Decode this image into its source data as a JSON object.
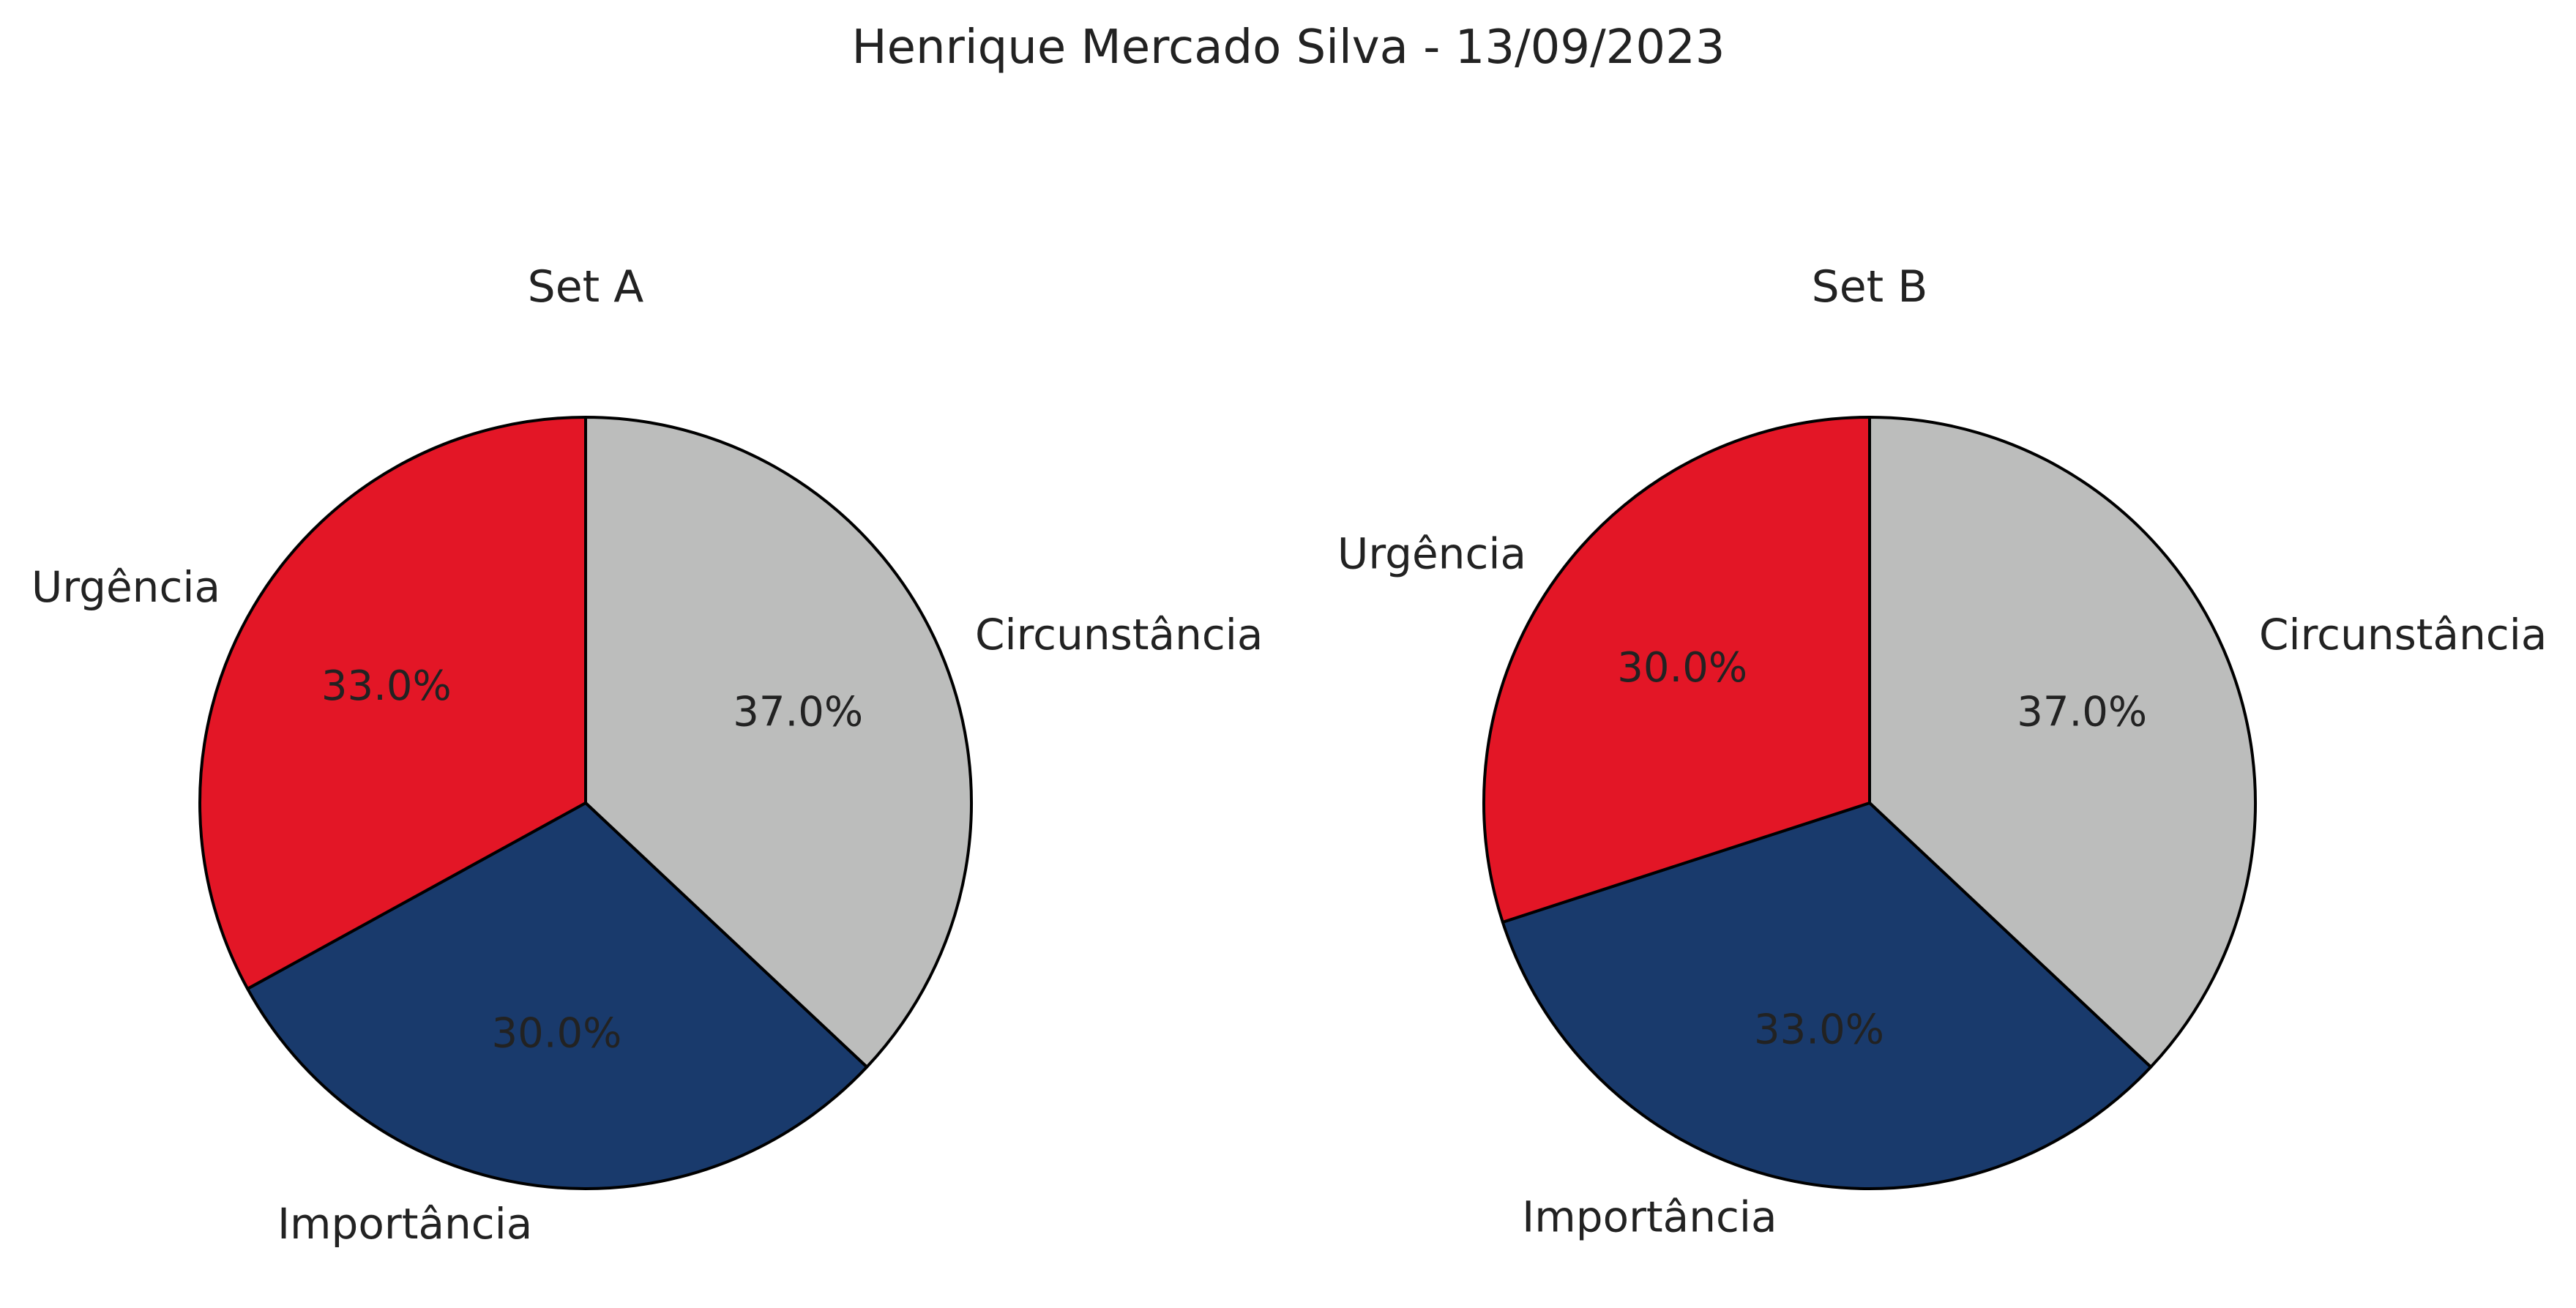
{
  "chart_data": {
    "title": "Henrique Mercado Silva - 13/09/2023",
    "charts": [
      {
        "type": "pie",
        "title": "Set A",
        "slices": [
          {
            "label": "Circunstância",
            "value": 37.0,
            "display": "37.0%",
            "color": "#bcbdbc"
          },
          {
            "label": "Importância",
            "value": 30.0,
            "display": "30.0%",
            "color": "#193a6c"
          },
          {
            "label": "Urgência",
            "value": 33.0,
            "display": "33.0%",
            "color": "#e31626"
          }
        ],
        "start": "top",
        "direction": "clockwise"
      },
      {
        "type": "pie",
        "title": "Set B",
        "slices": [
          {
            "label": "Circunstância",
            "value": 37.0,
            "display": "37.0%",
            "color": "#bcbdbc"
          },
          {
            "label": "Importância",
            "value": 33.0,
            "display": "33.0%",
            "color": "#193a6c"
          },
          {
            "label": "Urgência",
            "value": 30.0,
            "display": "30.0%",
            "color": "#e31626"
          }
        ],
        "start": "top",
        "direction": "clockwise"
      }
    ]
  }
}
